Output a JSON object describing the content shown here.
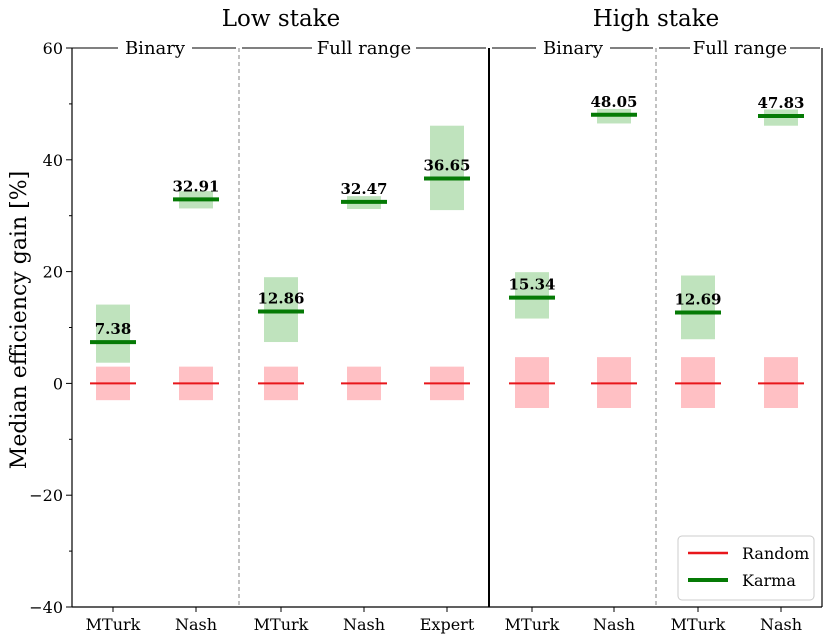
{
  "chart_data": {
    "type": "bar",
    "ylabel": "Median efficiency gain [%]",
    "ylim": [
      -40,
      60
    ],
    "yticks": [
      60,
      40,
      20,
      0,
      -20,
      -40
    ],
    "ytick_labels": [
      "60",
      "40",
      "20",
      "0",
      "−20",
      "−40"
    ],
    "categories": [
      "MTurk",
      "Nash",
      "MTurk",
      "Nash",
      "Expert",
      "MTurk",
      "Nash",
      "MTurk",
      "Nash"
    ],
    "groups": [
      {
        "title": "Low stake",
        "subgroups": [
          {
            "title": "Binary",
            "categories": [
              "MTurk",
              "Nash"
            ]
          },
          {
            "title": "Full range",
            "categories": [
              "MTurk",
              "Nash",
              "Expert"
            ]
          }
        ]
      },
      {
        "title": "High stake",
        "subgroups": [
          {
            "title": "Binary",
            "categories": [
              "MTurk",
              "Nash"
            ]
          },
          {
            "title": "Full range",
            "categories": [
              "MTurk",
              "Nash"
            ]
          }
        ]
      }
    ],
    "group_titles": [
      "Low stake",
      "High stake"
    ],
    "subgroup_titles": [
      "Binary",
      "Full range",
      "Binary",
      "Full range"
    ],
    "series": [
      {
        "name": "Random",
        "color": "#e8161b",
        "values": [
          0,
          0,
          0,
          0,
          0,
          0,
          0,
          0,
          0
        ],
        "band_low": [
          -3,
          -3,
          -3,
          -3,
          -3,
          -4.4,
          -4.4,
          -4.4,
          -4.4
        ],
        "band_high": [
          3,
          3,
          3,
          3,
          3,
          4.7,
          4.7,
          4.7,
          4.7
        ],
        "band_color": "#ffc0c4"
      },
      {
        "name": "Karma",
        "color": "#057a05",
        "values": [
          7.38,
          32.91,
          12.86,
          32.47,
          36.65,
          15.34,
          48.05,
          12.69,
          47.83
        ],
        "band_low": [
          3.7,
          31.3,
          7.4,
          31.2,
          31.0,
          11.6,
          46.5,
          7.9,
          46.1
        ],
        "band_high": [
          14.1,
          34.4,
          19.0,
          33.5,
          46.1,
          19.9,
          49.1,
          19.3,
          49.0
        ],
        "band_color": "#bfe3bd"
      }
    ],
    "data_labels": [
      "7.38",
      "32.91",
      "12.86",
      "32.47",
      "36.65",
      "15.34",
      "48.05",
      "12.69",
      "47.83"
    ],
    "legend": {
      "position": "bottom-right",
      "entries": [
        "Random",
        "Karma"
      ]
    }
  }
}
